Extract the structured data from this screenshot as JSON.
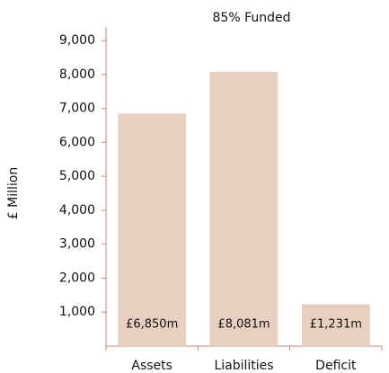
{
  "chart_data": {
    "type": "bar",
    "title": "85% Funded",
    "ylabel": "£ Million",
    "categories": [
      "Assets",
      "Liabilities",
      "Deficit"
    ],
    "values": [
      6850,
      8081,
      1231
    ],
    "value_labels": [
      "£6,850m",
      "£8,081m",
      "£1,231m"
    ],
    "color": "#e8d0c1",
    "ylim": [
      0,
      9400
    ],
    "yticks": [
      {
        "value": 1000,
        "label": "1,000"
      },
      {
        "value": 2000,
        "label": "2,000"
      },
      {
        "value": 3000,
        "label": "3,000"
      },
      {
        "value": 4000,
        "label": "4,000"
      },
      {
        "value": 5000,
        "label": "5,000"
      },
      {
        "value": 6000,
        "label": "6,000"
      },
      {
        "value": 7000,
        "label": "7,000"
      },
      {
        "value": 8000,
        "label": "8,000"
      },
      {
        "value": 9000,
        "label": "9,000"
      }
    ]
  }
}
